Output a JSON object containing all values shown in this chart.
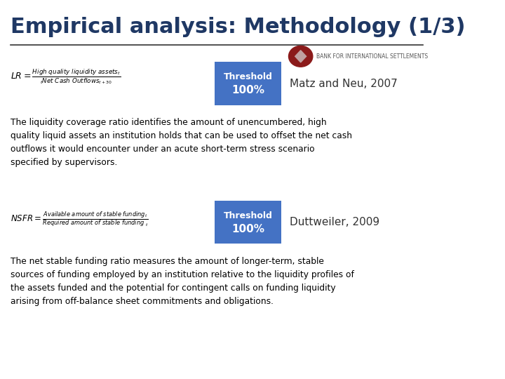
{
  "title": "Empirical analysis: Methodology (1/3)",
  "title_color": "#1F3864",
  "title_fontsize": 22,
  "bg_color": "#FFFFFF",
  "header_line_color": "#333333",
  "threshold_box_color": "#4472C4",
  "threshold_text_color": "#FFFFFF",
  "lcr_ref": "Matz and Neu, 2007",
  "lcr_desc": "The liquidity coverage ratio identifies the amount of unencumbered, high\nquality liquid assets an institution holds that can be used to offset the net cash\noutflows it would encounter under an acute short-term stress scenario\nspecified by supervisors.",
  "nsfr_ref": "Duttweiler, 2009",
  "nsfr_desc": "The net stable funding ratio measures the amount of longer-term, stable\nsources of funding employed by an institution relative to the liquidity profiles of\nthe assets funded and the potential for contingent calls on funding liquidity\narising from off-balance sheet commitments and obligations.",
  "text_color": "#000000",
  "ref_color": "#333333",
  "formula_color": "#000000",
  "bis_text": "BANK FOR INTERNATIONAL SETTLEMENTS",
  "bis_circle_color": "#8B1A1A",
  "bis_diamond_color": "#C0A0A0"
}
